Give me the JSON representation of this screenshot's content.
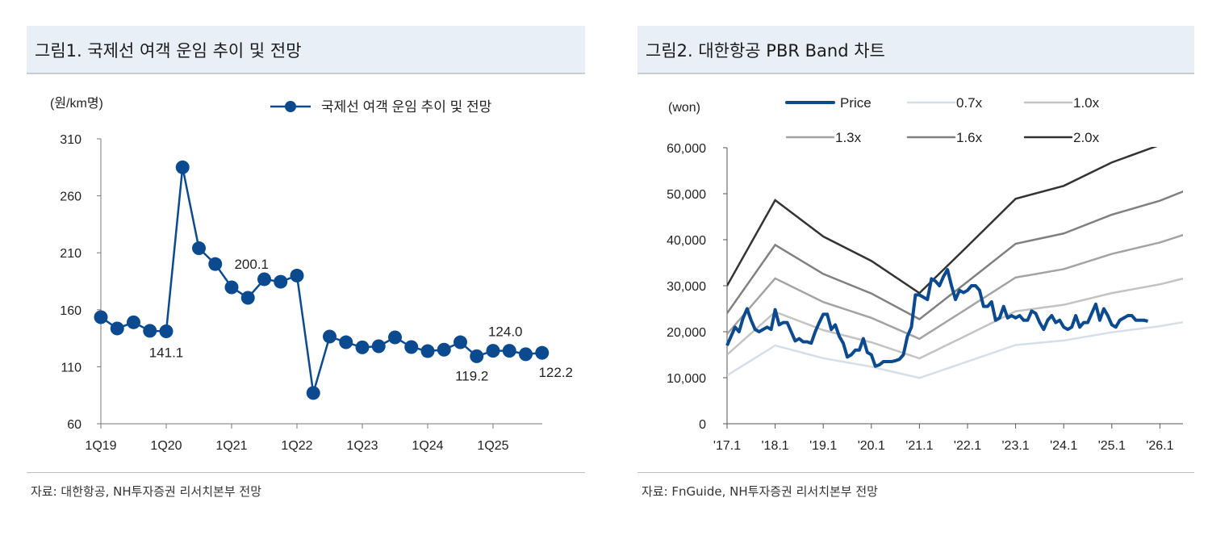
{
  "left": {
    "title": "그림1. 국제선 여객 운임 추이 및 전망",
    "source": "자료: 대한항공, NH투자증권 리서치본부 전망"
  },
  "right": {
    "title": "그림2. 대한항공 PBR Band 차트",
    "source": "자료: FnGuide, NH투자증권 리서치본부 전망"
  },
  "chart_data": [
    {
      "type": "line",
      "ylabel": "(원/km명)",
      "ylim": [
        60,
        310
      ],
      "yticks": [
        60,
        110,
        160,
        210,
        260,
        310
      ],
      "xtick_labels": [
        "1Q19",
        "1Q20",
        "1Q21",
        "1Q22",
        "1Q23",
        "1Q24",
        "1Q25"
      ],
      "legend_placement": "top-right",
      "color": "#0b4a8f",
      "categories": [
        "1Q19",
        "2Q19",
        "3Q19",
        "4Q19",
        "1Q20",
        "2Q20",
        "3Q20",
        "4Q20",
        "1Q21",
        "2Q21",
        "3Q21",
        "4Q21",
        "1Q22",
        "2Q22",
        "3Q22",
        "4Q22",
        "1Q23",
        "2Q23",
        "3Q23",
        "4Q23",
        "1Q24",
        "2Q24",
        "3Q24",
        "4Q24",
        "1Q25",
        "2Q25",
        "3Q25",
        "4Q25"
      ],
      "series": [
        {
          "name": "국제선 여객 운임 추이 및 전망",
          "values": [
            153.5,
            143.6,
            149.0,
            141.5,
            141.1,
            285.0,
            214.0,
            200.1,
            179.7,
            170.5,
            186.8,
            184.6,
            190.0,
            87.0,
            136.5,
            131.5,
            127.0,
            128.0,
            135.8,
            127.3,
            123.7,
            125.0,
            131.5,
            119.2,
            124.0,
            124.0,
            121.0,
            122.2
          ]
        }
      ],
      "data_labels": [
        {
          "category": "1Q20",
          "text": "141.1"
        },
        {
          "category": "4Q20",
          "text": "200.1"
        },
        {
          "category": "4Q24",
          "text": "119.2"
        },
        {
          "category": "2Q25",
          "text": "124.0"
        },
        {
          "category": "4Q25",
          "text": "122.2"
        }
      ]
    },
    {
      "type": "line",
      "ylabel": "(won)",
      "ylim": [
        0,
        60000
      ],
      "yticks": [
        "0",
        "10,000",
        "20,000",
        "30,000",
        "40,000",
        "50,000",
        "60,000"
      ],
      "xtick_labels": [
        "'17.1",
        "'18.1",
        "'19.1",
        "'20.1",
        "'21.1",
        "'22.1",
        "'23.1",
        "'24.1",
        "'25.1",
        "'26.1"
      ],
      "legend_placement": "top",
      "band_dates": [
        "2017-01",
        "2018-01",
        "2019-01",
        "2020-01",
        "2021-01",
        "2022-01",
        "2023-01",
        "2024-01",
        "2025-01",
        "2026-01",
        "2026-07"
      ],
      "bands": [
        {
          "name": "0.7x",
          "color": "#d6dee8",
          "values": [
            10500,
            17010,
            14245,
            12390,
            9940,
            13510,
            17115,
            18095,
            19880,
            21210,
            22120
          ]
        },
        {
          "name": "1.0x",
          "color": "#c3c3c3",
          "values": [
            15000,
            24300,
            20350,
            17700,
            14200,
            19300,
            24450,
            25850,
            28400,
            30300,
            31600
          ]
        },
        {
          "name": "1.3x",
          "color": "#a3a3a3",
          "values": [
            19500,
            31590,
            26455,
            23010,
            18460,
            25090,
            31785,
            33605,
            36920,
            39390,
            41080
          ]
        },
        {
          "name": "1.6x",
          "color": "#808080",
          "values": [
            24000,
            38880,
            32560,
            28320,
            22720,
            30880,
            39120,
            41360,
            45440,
            48480,
            50560
          ]
        },
        {
          "name": "2.0x",
          "color": "#333333",
          "values": [
            30000,
            48600,
            40700,
            35400,
            28400,
            38600,
            48900,
            51700,
            56800,
            60600,
            63200
          ]
        }
      ],
      "price": {
        "name": "Price",
        "color": "#0b4a8f",
        "start": "2017-01",
        "monthly": [
          17000,
          19000,
          21000,
          20000,
          23000,
          25000,
          22500,
          20500,
          20000,
          20500,
          21000,
          20500,
          24800,
          21500,
          22000,
          22000,
          20000,
          18000,
          18500,
          17800,
          17800,
          17500,
          20000,
          22000,
          23800,
          23800,
          20500,
          21500,
          19000,
          17500,
          14500,
          15000,
          16000,
          16000,
          18500,
          15500,
          15000,
          12500,
          12800,
          13500,
          13500,
          13500,
          13700,
          14000,
          15000,
          19000,
          21000,
          28000,
          28000,
          27500,
          27000,
          31500,
          31000,
          30000,
          32000,
          33500,
          30000,
          27000,
          29000,
          28500,
          29000,
          30000,
          30000,
          29000,
          25500,
          25500,
          26500,
          22500,
          23000,
          25500,
          23000,
          23500,
          23000,
          23500,
          22500,
          22500,
          24500,
          24000,
          22000,
          20500,
          22500,
          23500,
          22000,
          22500,
          21000,
          20500,
          21000,
          23500,
          21000,
          22000,
          22000,
          24000,
          26000,
          22500,
          25000,
          23500,
          21500,
          21000,
          22500,
          23000,
          23500,
          23500,
          22500,
          22500,
          22500,
          22300
        ]
      }
    }
  ]
}
